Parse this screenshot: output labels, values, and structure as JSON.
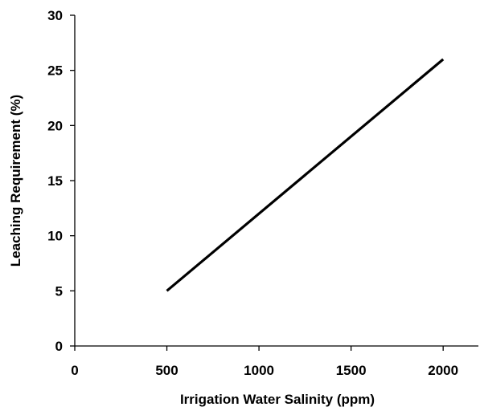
{
  "chart_data": {
    "type": "line",
    "title": "",
    "xlabel": "Irrigation Water Salinity (ppm)",
    "ylabel": "Leaching Requirement (%)",
    "xlim": [
      0,
      2200
    ],
    "ylim": [
      0,
      30
    ],
    "xticks": [
      0,
      500,
      1000,
      1500,
      2000
    ],
    "yticks": [
      0,
      5,
      10,
      15,
      20,
      25,
      30
    ],
    "grid": false,
    "legend": "none",
    "line_color": "#000000",
    "series": [
      {
        "x": [
          500,
          2000
        ],
        "y": [
          5,
          26
        ]
      }
    ]
  }
}
